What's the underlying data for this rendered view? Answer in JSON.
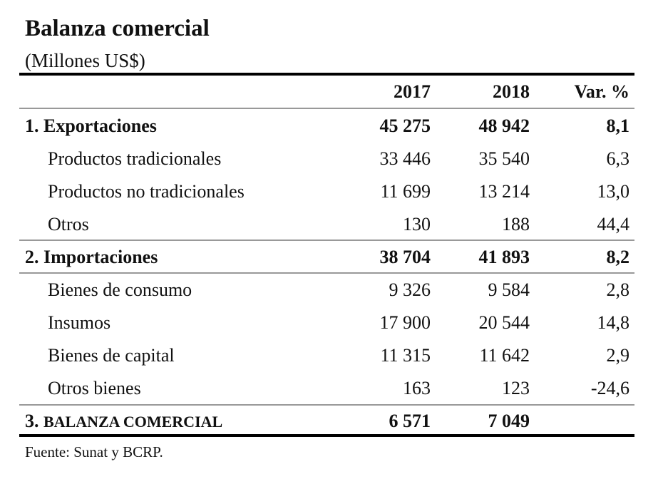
{
  "title": "Balanza comercial",
  "subtitle": "(Millones US$)",
  "headers": [
    "2017",
    "2018",
    "Var. %"
  ],
  "rows": [
    {
      "label": "1. Exportaciones",
      "v2017": "45 275",
      "v2018": "48 942",
      "var": "8,1",
      "bold": true
    },
    {
      "label": "Productos tradicionales",
      "v2017": "33 446",
      "v2018": "35 540",
      "var": "6,3"
    },
    {
      "label": "Productos no tradicionales",
      "v2017": "11 699",
      "v2018": "13 214",
      "var": "13,0"
    },
    {
      "label": "Otros",
      "v2017": "130",
      "v2018": "188",
      "var": "44,4"
    },
    {
      "label": "2. Importaciones",
      "v2017": "38 704",
      "v2018": "41 893",
      "var": "8,2",
      "bold": true
    },
    {
      "label": "Bienes de consumo",
      "v2017": "9 326",
      "v2018": "9 584",
      "var": "2,8"
    },
    {
      "label": "Insumos",
      "v2017": "17 900",
      "v2018": "20 544",
      "var": "14,8"
    },
    {
      "label": "Bienes de capital",
      "v2017": "11 315",
      "v2018": "11 642",
      "var": "2,9"
    },
    {
      "label": "Otros bienes",
      "v2017": "163",
      "v2018": "123",
      "var": "-24,6"
    }
  ],
  "total": {
    "num": "3.",
    "label": "BALANZA  COMERCIAL",
    "v2017": "6 571",
    "v2018": "7 049"
  },
  "footnote": "Fuente: Sunat y BCRP."
}
